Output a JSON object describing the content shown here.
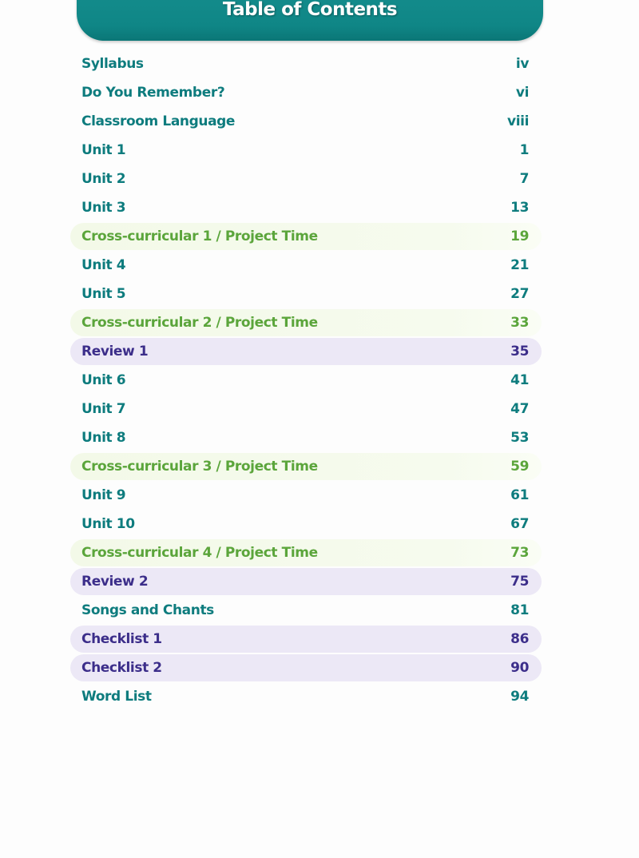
{
  "title": "Table of Contents",
  "colors": {
    "header": "#0f8686",
    "unit": "#0e7c7e",
    "cross": "#5ba53b",
    "cross_bg": "#f3f9e8",
    "review": "#3c2e8a",
    "review_bg": "#ece8f6"
  },
  "entries": [
    {
      "label": "Syllabus",
      "page": "iv",
      "type": "unit"
    },
    {
      "label": "Do You Remember?",
      "page": "vi",
      "type": "unit"
    },
    {
      "label": "Classroom Language",
      "page": "viii",
      "type": "unit"
    },
    {
      "label": "Unit 1",
      "page": "1",
      "type": "unit"
    },
    {
      "label": "Unit 2",
      "page": "7",
      "type": "unit"
    },
    {
      "label": "Unit 3",
      "page": "13",
      "type": "unit"
    },
    {
      "label": "Cross-curricular 1 / Project Time",
      "page": "19",
      "type": "cross"
    },
    {
      "label": "Unit 4",
      "page": "21",
      "type": "unit"
    },
    {
      "label": "Unit 5",
      "page": "27",
      "type": "unit"
    },
    {
      "label": "Cross-curricular 2 / Project Time",
      "page": "33",
      "type": "cross"
    },
    {
      "label": "Review 1",
      "page": "35",
      "type": "review"
    },
    {
      "label": "Unit 6",
      "page": "41",
      "type": "unit"
    },
    {
      "label": "Unit 7",
      "page": "47",
      "type": "unit"
    },
    {
      "label": "Unit 8",
      "page": "53",
      "type": "unit"
    },
    {
      "label": "Cross-curricular 3 / Project Time",
      "page": "59",
      "type": "cross"
    },
    {
      "label": "Unit 9",
      "page": "61",
      "type": "unit"
    },
    {
      "label": "Unit 10",
      "page": "67",
      "type": "unit"
    },
    {
      "label": "Cross-curricular 4 / Project Time",
      "page": "73",
      "type": "cross"
    },
    {
      "label": "Review 2",
      "page": "75",
      "type": "review"
    },
    {
      "label": "Songs and Chants",
      "page": "81",
      "type": "unit"
    },
    {
      "label": "Checklist 1",
      "page": "86",
      "type": "review"
    },
    {
      "label": "Checklist 2",
      "page": "90",
      "type": "review"
    },
    {
      "label": "Word List",
      "page": "94",
      "type": "unit"
    }
  ]
}
